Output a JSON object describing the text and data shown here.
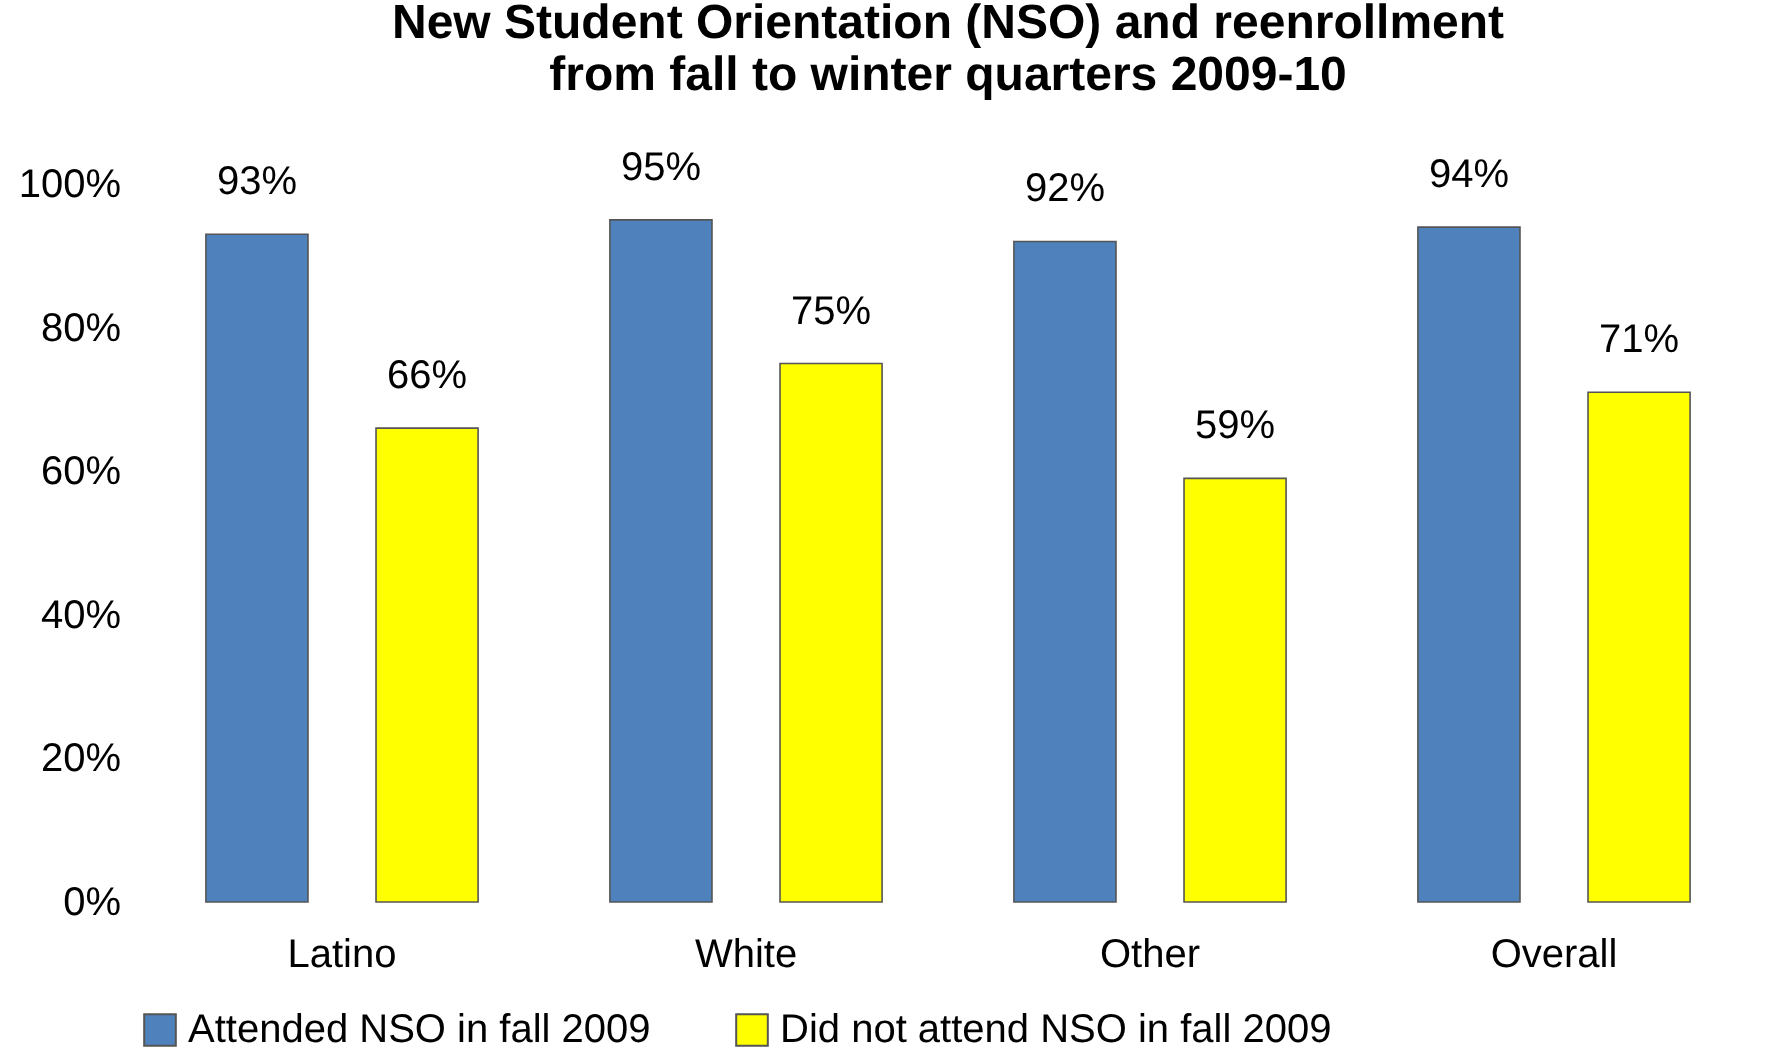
{
  "chart_data": {
    "type": "bar",
    "title": "New Student Orientation (NSO) and reenrollment from fall to winter quarters 2009-10",
    "categories": [
      "Latino",
      "White",
      "Other",
      "Overall"
    ],
    "series": [
      {
        "name": "Attended NSO in fall 2009",
        "color": "#4f81bd",
        "values": [
          93,
          95,
          92,
          94
        ],
        "value_labels": [
          "93%",
          "95%",
          "92%",
          "94%"
        ]
      },
      {
        "name": "Did not attend NSO in fall 2009",
        "color": "#ffff00",
        "values": [
          66,
          75,
          59,
          71
        ],
        "value_labels": [
          "66%",
          "75%",
          "59%",
          "71%"
        ]
      }
    ],
    "ylim": [
      0,
      100
    ],
    "yticks": [
      {
        "value": 0,
        "label": "0%"
      },
      {
        "value": 20,
        "label": "20%"
      },
      {
        "value": 40,
        "label": "40%"
      },
      {
        "value": 60,
        "label": "60%"
      },
      {
        "value": 80,
        "label": "80%"
      },
      {
        "value": 100,
        "label": "100%"
      }
    ],
    "legend": "bottom"
  }
}
